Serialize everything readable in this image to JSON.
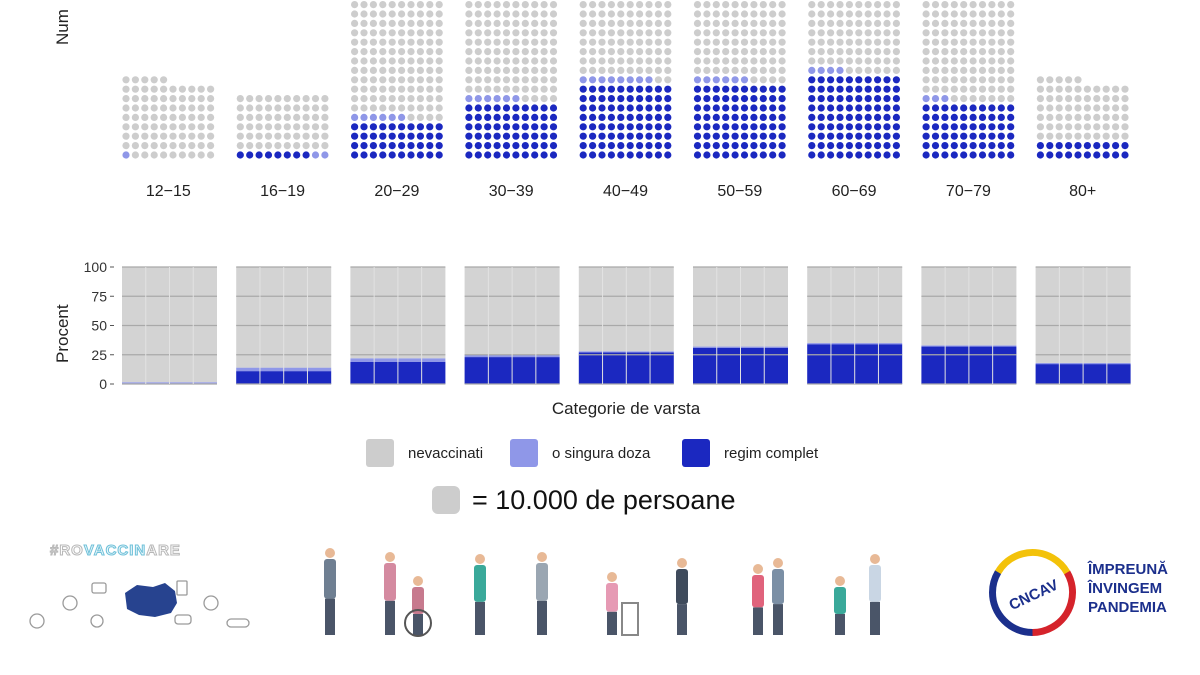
{
  "chart_data": [
    {
      "type": "waffle",
      "ylabel": "Num",
      "unit_note": "= 10.000 de persoane",
      "categories": [
        "12-15",
        "16-19",
        "20-29",
        "30-39",
        "40-49",
        "50-59",
        "60-69",
        "70-79",
        "80+"
      ],
      "series": [
        {
          "name": "regim complet",
          "values": [
            0,
            8,
            40,
            60,
            80,
            80,
            90,
            60,
            20
          ]
        },
        {
          "name": "o singura doza",
          "values": [
            1,
            2,
            6,
            6,
            8,
            6,
            4,
            3,
            0
          ]
        },
        {
          "name": "nevaccinati",
          "values": [
            84,
            60,
            154,
            124,
            132,
            134,
            146,
            122,
            65
          ]
        }
      ],
      "colors": {
        "nevaccinati": "#cdcdcd",
        "o singura doza": "#8f97e8",
        "regim complet": "#1b28c0"
      }
    },
    {
      "type": "bar",
      "stacked": true,
      "xlabel": "Categorie de varsta",
      "ylabel": "Procent",
      "ylim": [
        0,
        100
      ],
      "yticks": [
        "0",
        "25",
        "50",
        "75",
        "100"
      ],
      "categories": [
        "12-15",
        "16-19",
        "20-29",
        "30-39",
        "40-49",
        "50-59",
        "60-69",
        "70-79",
        "80+"
      ],
      "series": [
        {
          "name": "regim complet",
          "values": [
            0.5,
            11,
            19,
            23,
            27,
            31,
            34,
            32,
            17
          ]
        },
        {
          "name": "o singura doza",
          "values": [
            1,
            3,
            3,
            2,
            1,
            1,
            1,
            1,
            1
          ]
        },
        {
          "name": "nevaccinati",
          "values": [
            98.5,
            86,
            78,
            75,
            72,
            68,
            65,
            67,
            82
          ]
        }
      ],
      "colors": {
        "nevaccinati": "#d3d3d3",
        "o singura doza": "#8f97e8",
        "regim complet": "#1b28c0"
      }
    }
  ],
  "legend": {
    "items": [
      {
        "label": "nevaccinati",
        "color": "#cdcdcd"
      },
      {
        "label": "o singura doza",
        "color": "#8f97e8"
      },
      {
        "label": "regim complet",
        "color": "#1b28c0"
      }
    ]
  },
  "scale_note": {
    "text": "= 10.000 de persoane"
  },
  "footer": {
    "hashtag_prefix": "#RO",
    "hashtag_highlight": "VACCIN",
    "hashtag_suffix": "ARE",
    "logo_text": "CNCAV",
    "slogan_line1": "ÎMPREUNĂ",
    "slogan_line2": "ÎNVINGEM",
    "slogan_line3": "PANDEMIA"
  }
}
